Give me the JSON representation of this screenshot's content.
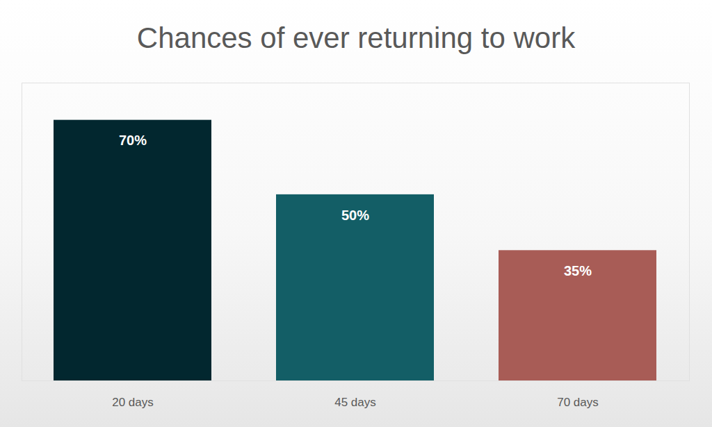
{
  "chart_data": {
    "type": "bar",
    "title": "Chances of ever returning to work",
    "categories": [
      "20 days",
      "45 days",
      "70 days"
    ],
    "values": [
      70,
      50,
      35
    ],
    "value_labels": [
      "70%",
      "50%",
      "35%"
    ],
    "colors": [
      "#02272f",
      "#135e66",
      "#a85c56"
    ],
    "ylim": [
      0,
      80
    ],
    "yticks": [],
    "grid": false,
    "data_labels": true,
    "tick_labels": "x"
  }
}
